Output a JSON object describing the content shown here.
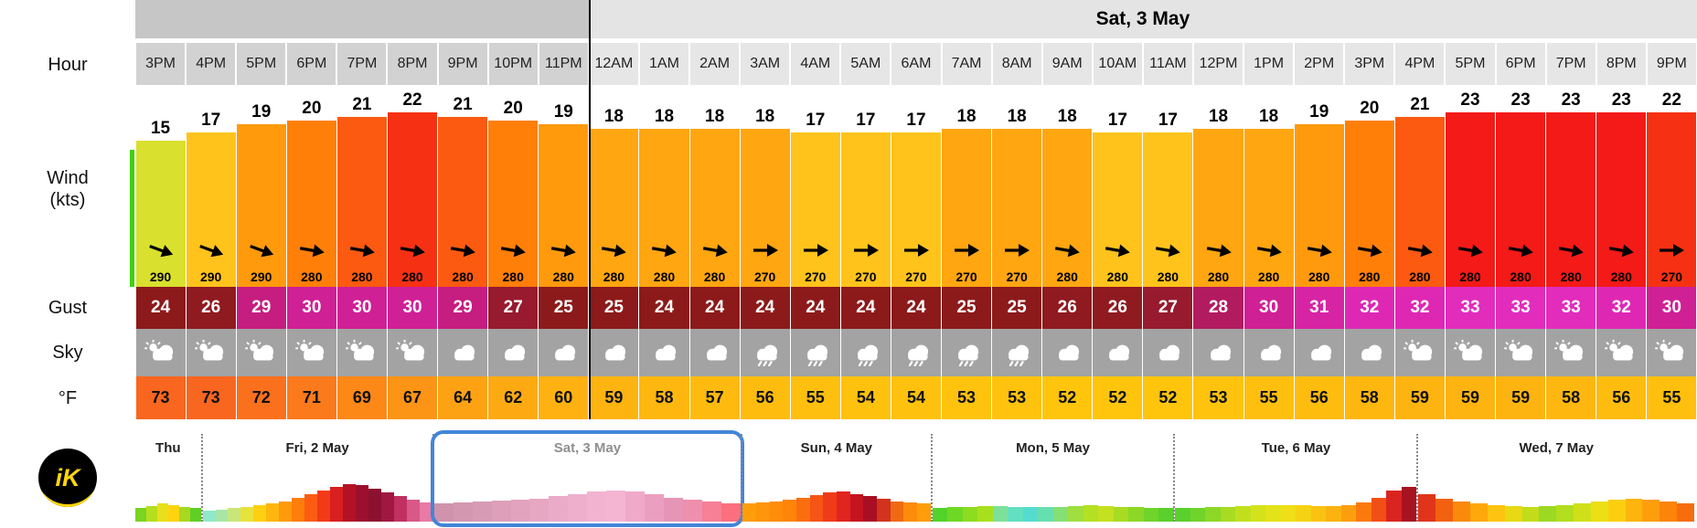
{
  "header": {
    "day_label": "Sat, 3 May",
    "past_columns": 9
  },
  "row_labels": {
    "hour": "Hour",
    "wind1": "Wind",
    "wind2": "(kts)",
    "gust": "Gust",
    "sky": "Sky",
    "temp": "°F"
  },
  "logo": {
    "text": "iK"
  },
  "columns": [
    {
      "hour": "3PM",
      "wind": 15,
      "dir": 290,
      "gust": 24,
      "sky": "partly",
      "temp": 73,
      "windColor": "#d9e02e",
      "gustColor": "#8c1a1a",
      "tempColor": "#f9661f"
    },
    {
      "hour": "4PM",
      "wind": 17,
      "dir": 290,
      "gust": 26,
      "sky": "partly",
      "temp": 73,
      "windColor": "#ffc31c",
      "gustColor": "#8f1a20",
      "tempColor": "#f9661f"
    },
    {
      "hour": "5PM",
      "wind": 19,
      "dir": 290,
      "gust": 29,
      "sky": "partly",
      "temp": 72,
      "windColor": "#ff9a0d",
      "gustColor": "#c51d80",
      "tempColor": "#fa701d"
    },
    {
      "hour": "6PM",
      "wind": 20,
      "dir": 280,
      "gust": 30,
      "sky": "partly",
      "temp": 71,
      "windColor": "#ff7f08",
      "gustColor": "#cf2095",
      "tempColor": "#fb7a1b"
    },
    {
      "hour": "7PM",
      "wind": 21,
      "dir": 280,
      "gust": 30,
      "sky": "partly",
      "temp": 69,
      "windColor": "#fb5a10",
      "gustColor": "#cf2095",
      "tempColor": "#fc8818"
    },
    {
      "hour": "8PM",
      "wind": 22,
      "dir": 280,
      "gust": 30,
      "sky": "partly",
      "temp": 67,
      "windColor": "#f63113",
      "gustColor": "#cf2095",
      "tempColor": "#fc9416"
    },
    {
      "hour": "9PM",
      "wind": 21,
      "dir": 280,
      "gust": 29,
      "sky": "cloudy",
      "temp": 64,
      "windColor": "#fb5a10",
      "gustColor": "#c51d80",
      "tempColor": "#fda213"
    },
    {
      "hour": "10PM",
      "wind": 20,
      "dir": 280,
      "gust": 27,
      "sky": "cloudy",
      "temp": 62,
      "windColor": "#ff7f08",
      "gustColor": "#971a2e",
      "tempColor": "#fdaa12"
    },
    {
      "hour": "11PM",
      "wind": 19,
      "dir": 280,
      "gust": 25,
      "sky": "cloudy",
      "temp": 60,
      "windColor": "#ff9a0d",
      "gustColor": "#8c1a1a",
      "tempColor": "#feb110"
    },
    {
      "hour": "12AM",
      "wind": 18,
      "dir": 280,
      "gust": 25,
      "sky": "cloudy",
      "temp": 59,
      "windColor": "#ffa611",
      "gustColor": "#8c1a1a",
      "tempColor": "#feb410"
    },
    {
      "hour": "1AM",
      "wind": 18,
      "dir": 280,
      "gust": 24,
      "sky": "cloudy",
      "temp": 58,
      "windColor": "#ffa611",
      "gustColor": "#8c1a1a",
      "tempColor": "#feb70f"
    },
    {
      "hour": "2AM",
      "wind": 18,
      "dir": 280,
      "gust": 24,
      "sky": "cloudy",
      "temp": 57,
      "windColor": "#ffa611",
      "gustColor": "#8c1a1a",
      "tempColor": "#feba0f"
    },
    {
      "hour": "3AM",
      "wind": 18,
      "dir": 270,
      "gust": 24,
      "sky": "rain",
      "temp": 56,
      "windColor": "#ffa611",
      "gustColor": "#8c1a1a",
      "tempColor": "#febc0e"
    },
    {
      "hour": "4AM",
      "wind": 17,
      "dir": 270,
      "gust": 24,
      "sky": "rain",
      "temp": 55,
      "windColor": "#ffc31c",
      "gustColor": "#8c1a1a",
      "tempColor": "#febf0e"
    },
    {
      "hour": "5AM",
      "wind": 17,
      "dir": 270,
      "gust": 24,
      "sky": "rain",
      "temp": 54,
      "windColor": "#ffc31c",
      "gustColor": "#8c1a1a",
      "tempColor": "#fec10d"
    },
    {
      "hour": "6AM",
      "wind": 17,
      "dir": 270,
      "gust": 24,
      "sky": "rain",
      "temp": 54,
      "windColor": "#ffc31c",
      "gustColor": "#8c1a1a",
      "tempColor": "#fec10d"
    },
    {
      "hour": "7AM",
      "wind": 18,
      "dir": 270,
      "gust": 25,
      "sky": "rain",
      "temp": 53,
      "windColor": "#ffa611",
      "gustColor": "#8c1a1a",
      "tempColor": "#ffc30d"
    },
    {
      "hour": "8AM",
      "wind": 18,
      "dir": 270,
      "gust": 25,
      "sky": "rain",
      "temp": 53,
      "windColor": "#ffa611",
      "gustColor": "#8c1a1a",
      "tempColor": "#ffc30d"
    },
    {
      "hour": "9AM",
      "wind": 18,
      "dir": 280,
      "gust": 26,
      "sky": "cloudy",
      "temp": 52,
      "windColor": "#ffa611",
      "gustColor": "#8f1a20",
      "tempColor": "#ffc50c"
    },
    {
      "hour": "10AM",
      "wind": 17,
      "dir": 280,
      "gust": 26,
      "sky": "cloudy",
      "temp": 52,
      "windColor": "#ffc31c",
      "gustColor": "#8f1a20",
      "tempColor": "#ffc50c"
    },
    {
      "hour": "11AM",
      "wind": 17,
      "dir": 280,
      "gust": 27,
      "sky": "cloudy",
      "temp": 52,
      "windColor": "#ffc31c",
      "gustColor": "#971a2e",
      "tempColor": "#ffc50c"
    },
    {
      "hour": "12PM",
      "wind": 18,
      "dir": 280,
      "gust": 28,
      "sky": "cloudy",
      "temp": 53,
      "windColor": "#ffa611",
      "gustColor": "#b21b60",
      "tempColor": "#ffc30d"
    },
    {
      "hour": "1PM",
      "wind": 18,
      "dir": 280,
      "gust": 30,
      "sky": "cloudy",
      "temp": 55,
      "windColor": "#ffa611",
      "gustColor": "#cf2095",
      "tempColor": "#febf0e"
    },
    {
      "hour": "2PM",
      "wind": 19,
      "dir": 280,
      "gust": 31,
      "sky": "cloudy",
      "temp": 56,
      "windColor": "#ff9a0d",
      "gustColor": "#d724a5",
      "tempColor": "#febc0e"
    },
    {
      "hour": "3PM",
      "wind": 20,
      "dir": 280,
      "gust": 32,
      "sky": "cloudy",
      "temp": 58,
      "windColor": "#ff7f08",
      "gustColor": "#de28b4",
      "tempColor": "#feb70f"
    },
    {
      "hour": "4PM",
      "wind": 21,
      "dir": 280,
      "gust": 32,
      "sky": "partly",
      "temp": 59,
      "windColor": "#fb5a10",
      "gustColor": "#de28b4",
      "tempColor": "#feb410"
    },
    {
      "hour": "5PM",
      "wind": 23,
      "dir": 280,
      "gust": 33,
      "sky": "partly",
      "temp": 59,
      "windColor": "#f31a17",
      "gustColor": "#e22cbc",
      "tempColor": "#feb410"
    },
    {
      "hour": "6PM",
      "wind": 23,
      "dir": 280,
      "gust": 33,
      "sky": "partly",
      "temp": 59,
      "windColor": "#f31a17",
      "gustColor": "#e22cbc",
      "tempColor": "#feb410"
    },
    {
      "hour": "7PM",
      "wind": 23,
      "dir": 280,
      "gust": 33,
      "sky": "partly",
      "temp": 58,
      "windColor": "#f31a17",
      "gustColor": "#e22cbc",
      "tempColor": "#feb70f"
    },
    {
      "hour": "8PM",
      "wind": 23,
      "dir": 280,
      "gust": 32,
      "sky": "partly",
      "temp": 56,
      "windColor": "#f31a17",
      "gustColor": "#de28b4",
      "tempColor": "#febc0e"
    },
    {
      "hour": "9PM",
      "wind": 22,
      "dir": 270,
      "gust": 30,
      "sky": "partly",
      "temp": 55,
      "windColor": "#f63113",
      "gustColor": "#cf2095",
      "tempColor": "#febf0e"
    }
  ],
  "minichart": {
    "selection_color": "#4285d8",
    "days": [
      {
        "label": "Thu",
        "flex": 61,
        "selected": false,
        "bars": [
          [
            0.22,
            "#7ad422"
          ],
          [
            0.26,
            "#b5de1f"
          ],
          [
            0.3,
            "#e8e01a"
          ],
          [
            0.28,
            "#ffd40f"
          ],
          [
            0.25,
            "#a8d81f"
          ],
          [
            0.22,
            "#5fcf26"
          ]
        ]
      },
      {
        "label": "Fri, 2 May",
        "flex": 214,
        "selected": false,
        "bars": [
          [
            0.18,
            "#8fe8c9"
          ],
          [
            0.2,
            "#a8e6a8"
          ],
          [
            0.22,
            "#c9e67a"
          ],
          [
            0.24,
            "#e8e23c"
          ],
          [
            0.27,
            "#ffd012"
          ],
          [
            0.3,
            "#ffb60e"
          ],
          [
            0.34,
            "#ff9b0b"
          ],
          [
            0.4,
            "#ff7d0a"
          ],
          [
            0.46,
            "#fb5c12"
          ],
          [
            0.52,
            "#f23a18"
          ],
          [
            0.58,
            "#d91f1f"
          ],
          [
            0.62,
            "#b31224"
          ],
          [
            0.6,
            "#9c0f2e"
          ],
          [
            0.55,
            "#8c1030"
          ],
          [
            0.48,
            "#a01840"
          ],
          [
            0.42,
            "#c03060"
          ],
          [
            0.36,
            "#d85888"
          ],
          [
            0.32,
            "#e87aa4"
          ]
        ]
      },
      {
        "label": "Sat, 3 May",
        "flex": 286,
        "selected": true,
        "bars": [
          [
            0.3,
            "#cf93ab"
          ],
          [
            0.32,
            "#d497b0"
          ],
          [
            0.34,
            "#d89bb4"
          ],
          [
            0.35,
            "#dd9fb9"
          ],
          [
            0.36,
            "#e2a3bf"
          ],
          [
            0.38,
            "#e6a7c3"
          ],
          [
            0.42,
            "#eaabc8"
          ],
          [
            0.46,
            "#eeafcd"
          ],
          [
            0.5,
            "#f2b3d1"
          ],
          [
            0.52,
            "#f4b5d3"
          ],
          [
            0.5,
            "#f0a9c9"
          ],
          [
            0.46,
            "#eb9fc0"
          ],
          [
            0.4,
            "#e695b6"
          ],
          [
            0.36,
            "#ef8fae"
          ],
          [
            0.33,
            "#f77f96"
          ],
          [
            0.3,
            "#fb6f7e"
          ]
        ]
      },
      {
        "label": "Sun, 4 May",
        "flex": 175,
        "selected": false,
        "bars": [
          [
            0.3,
            "#ff9d0b"
          ],
          [
            0.32,
            "#ff950a"
          ],
          [
            0.34,
            "#ff8d09"
          ],
          [
            0.36,
            "#ff8408"
          ],
          [
            0.4,
            "#fb6e10"
          ],
          [
            0.44,
            "#f65515"
          ],
          [
            0.48,
            "#ef3b1a"
          ],
          [
            0.5,
            "#e0241e"
          ],
          [
            0.46,
            "#c41420"
          ],
          [
            0.42,
            "#a80e24"
          ],
          [
            0.38,
            "#d2331c"
          ],
          [
            0.34,
            "#f06a12"
          ],
          [
            0.32,
            "#ff8c09"
          ],
          [
            0.3,
            "#ff9d0b"
          ]
        ]
      },
      {
        "label": "Mon, 5 May",
        "flex": 225,
        "selected": false,
        "bars": [
          [
            0.22,
            "#52d32a"
          ],
          [
            0.24,
            "#6ed824"
          ],
          [
            0.25,
            "#8cdc20"
          ],
          [
            0.26,
            "#a8e01d"
          ],
          [
            0.26,
            "#7de09a"
          ],
          [
            0.25,
            "#62e0c0"
          ],
          [
            0.24,
            "#55dccf"
          ],
          [
            0.24,
            "#66dfae"
          ],
          [
            0.25,
            "#86df74"
          ],
          [
            0.26,
            "#9fdf3f"
          ],
          [
            0.27,
            "#b4e024"
          ],
          [
            0.26,
            "#c4e120"
          ],
          [
            0.25,
            "#a8dc22"
          ],
          [
            0.24,
            "#8cd826"
          ],
          [
            0.23,
            "#70d42a"
          ],
          [
            0.22,
            "#5ad02c"
          ]
        ]
      },
      {
        "label": "Tue, 6 May",
        "flex": 225,
        "selected": false,
        "bars": [
          [
            0.22,
            "#5ad02c"
          ],
          [
            0.23,
            "#70d42a"
          ],
          [
            0.24,
            "#8cd826"
          ],
          [
            0.25,
            "#a8dc22"
          ],
          [
            0.26,
            "#c0e01e"
          ],
          [
            0.27,
            "#d4e21b"
          ],
          [
            0.28,
            "#e4e218"
          ],
          [
            0.28,
            "#f0de16"
          ],
          [
            0.27,
            "#f6d214"
          ],
          [
            0.26,
            "#fac312"
          ],
          [
            0.26,
            "#fcb210"
          ],
          [
            0.28,
            "#fd9e0d"
          ],
          [
            0.32,
            "#fb7a0e"
          ],
          [
            0.4,
            "#f24f16"
          ],
          [
            0.52,
            "#d9251f"
          ],
          [
            0.58,
            "#a81322"
          ]
        ]
      },
      {
        "label": "Wed, 7 May",
        "flex": 257,
        "selected": false,
        "bars": [
          [
            0.46,
            "#e0351a"
          ],
          [
            0.38,
            "#f2610f"
          ],
          [
            0.33,
            "#fc8a0a"
          ],
          [
            0.3,
            "#ffa80c"
          ],
          [
            0.28,
            "#fec310"
          ],
          [
            0.26,
            "#e8d914"
          ],
          [
            0.25,
            "#c2dc1a"
          ],
          [
            0.26,
            "#9cd922"
          ],
          [
            0.28,
            "#b2de1e"
          ],
          [
            0.3,
            "#cfe01a"
          ],
          [
            0.33,
            "#ecdf14"
          ],
          [
            0.36,
            "#fbcf10"
          ],
          [
            0.38,
            "#fdb40d"
          ],
          [
            0.36,
            "#fe9e0b"
          ],
          [
            0.33,
            "#fc8409"
          ],
          [
            0.3,
            "#f66d0e"
          ]
        ]
      }
    ]
  }
}
